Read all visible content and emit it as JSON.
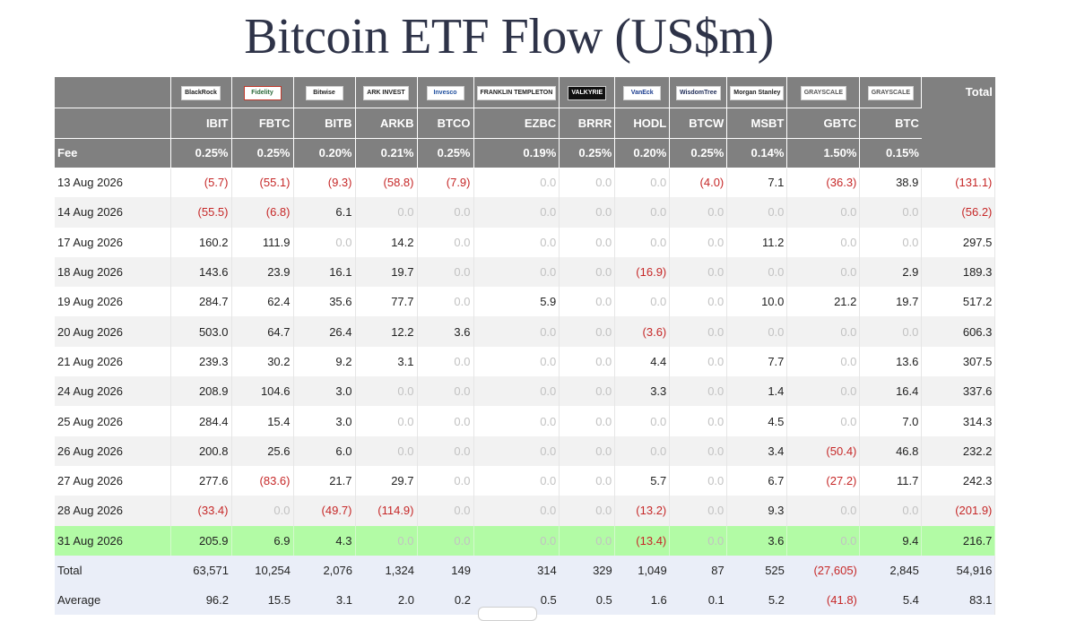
{
  "title": "Bitcoin ETF Flow (US$m)",
  "header": {
    "logos": [
      "BlackRock",
      "Fidelity",
      "Bitwise",
      "ARK INVEST",
      "Invesco",
      "FRANKLIN TEMPLETON",
      "VALKYRIE",
      "VanEck",
      "WisdomTree",
      "Morgan Stanley",
      "GRAYSCALE",
      "GRAYSCALE"
    ],
    "total_label": "Total",
    "tickers": [
      "IBIT",
      "FBTC",
      "BITB",
      "ARKB",
      "BTCO",
      "EZBC",
      "BRRR",
      "HODL",
      "BTCW",
      "MSBT",
      "GBTC",
      "BTC"
    ],
    "fee_label": "Fee",
    "fees": [
      "0.25%",
      "0.25%",
      "0.20%",
      "0.21%",
      "0.25%",
      "0.19%",
      "0.25%",
      "0.20%",
      "0.25%",
      "0.14%",
      "1.50%",
      "0.15%"
    ]
  },
  "rows": [
    {
      "date": "13 Aug 2026",
      "values": [
        "(5.7)",
        "(55.1)",
        "(9.3)",
        "(58.8)",
        "(7.9)",
        "0.0",
        "0.0",
        "0.0",
        "(4.0)",
        "7.1",
        "(36.3)",
        "38.9"
      ],
      "total": "(131.1)"
    },
    {
      "date": "14 Aug 2026",
      "values": [
        "(55.5)",
        "(6.8)",
        "6.1",
        "0.0",
        "0.0",
        "0.0",
        "0.0",
        "0.0",
        "0.0",
        "0.0",
        "0.0",
        "0.0"
      ],
      "total": "(56.2)"
    },
    {
      "date": "17 Aug 2026",
      "values": [
        "160.2",
        "111.9",
        "0.0",
        "14.2",
        "0.0",
        "0.0",
        "0.0",
        "0.0",
        "0.0",
        "11.2",
        "0.0",
        "0.0"
      ],
      "total": "297.5"
    },
    {
      "date": "18 Aug 2026",
      "values": [
        "143.6",
        "23.9",
        "16.1",
        "19.7",
        "0.0",
        "0.0",
        "0.0",
        "(16.9)",
        "0.0",
        "0.0",
        "0.0",
        "2.9"
      ],
      "total": "189.3"
    },
    {
      "date": "19 Aug 2026",
      "values": [
        "284.7",
        "62.4",
        "35.6",
        "77.7",
        "0.0",
        "5.9",
        "0.0",
        "0.0",
        "0.0",
        "10.0",
        "21.2",
        "19.7"
      ],
      "total": "517.2"
    },
    {
      "date": "20 Aug 2026",
      "values": [
        "503.0",
        "64.7",
        "26.4",
        "12.2",
        "3.6",
        "0.0",
        "0.0",
        "(3.6)",
        "0.0",
        "0.0",
        "0.0",
        "0.0"
      ],
      "total": "606.3"
    },
    {
      "date": "21 Aug 2026",
      "values": [
        "239.3",
        "30.2",
        "9.2",
        "3.1",
        "0.0",
        "0.0",
        "0.0",
        "4.4",
        "0.0",
        "7.7",
        "0.0",
        "13.6"
      ],
      "total": "307.5"
    },
    {
      "date": "24 Aug 2026",
      "values": [
        "208.9",
        "104.6",
        "3.0",
        "0.0",
        "0.0",
        "0.0",
        "0.0",
        "3.3",
        "0.0",
        "1.4",
        "0.0",
        "16.4"
      ],
      "total": "337.6"
    },
    {
      "date": "25 Aug 2026",
      "values": [
        "284.4",
        "15.4",
        "3.0",
        "0.0",
        "0.0",
        "0.0",
        "0.0",
        "0.0",
        "0.0",
        "4.5",
        "0.0",
        "7.0"
      ],
      "total": "314.3"
    },
    {
      "date": "26 Aug 2026",
      "values": [
        "200.8",
        "25.6",
        "6.0",
        "0.0",
        "0.0",
        "0.0",
        "0.0",
        "0.0",
        "0.0",
        "3.4",
        "(50.4)",
        "46.8"
      ],
      "total": "232.2"
    },
    {
      "date": "27 Aug 2026",
      "values": [
        "277.6",
        "(83.6)",
        "21.7",
        "29.7",
        "0.0",
        "0.0",
        "0.0",
        "5.7",
        "0.0",
        "6.7",
        "(27.2)",
        "11.7"
      ],
      "total": "242.3"
    },
    {
      "date": "28 Aug 2026",
      "values": [
        "(33.4)",
        "0.0",
        "(49.7)",
        "(114.9)",
        "0.0",
        "0.0",
        "0.0",
        "(13.2)",
        "0.0",
        "9.3",
        "0.0",
        "0.0"
      ],
      "total": "(201.9)"
    },
    {
      "date": "31 Aug 2026",
      "values": [
        "205.9",
        "6.9",
        "4.3",
        "0.0",
        "0.0",
        "0.0",
        "0.0",
        "(13.4)",
        "0.0",
        "3.6",
        "0.0",
        "9.4"
      ],
      "total": "216.7",
      "highlight": true
    }
  ],
  "summary": [
    {
      "label": "Total",
      "values": [
        "63,571",
        "10,254",
        "2,076",
        "1,324",
        "149",
        "314",
        "329",
        "1,049",
        "87",
        "525",
        "(27,605)",
        "2,845"
      ],
      "total": "54,916"
    },
    {
      "label": "Average",
      "values": [
        "96.2",
        "15.5",
        "3.1",
        "2.0",
        "0.2",
        "0.5",
        "0.5",
        "1.6",
        "0.1",
        "5.2",
        "(41.8)",
        "5.4"
      ],
      "total": "83.1"
    }
  ],
  "colors": {
    "header_bg": "#808080",
    "negative": "#c62828",
    "zero": "#c2c2c2",
    "highlight_row": "#b2fba5",
    "summary_bg": "#eaeef8",
    "title": "#2e3348"
  }
}
